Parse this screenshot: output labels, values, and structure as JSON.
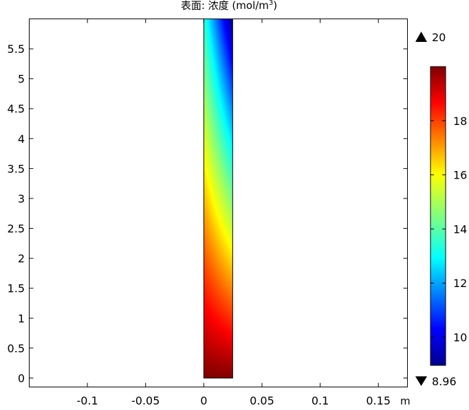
{
  "chart_data": {
    "type": "heatmap",
    "title_prefix": "表面: 浓度 (mol/m",
    "title_sup": "3",
    "title_suffix": ")",
    "x_unit": "m",
    "xlim": [
      -0.15,
      0.175
    ],
    "ylim": [
      -0.15,
      6.0
    ],
    "x_ticks": [
      -0.1,
      -0.05,
      0,
      0.05,
      0.1,
      0.15
    ],
    "x_tick_labels": [
      "-0.1",
      "-0.05",
      "0",
      "0.05",
      "0.1",
      "0.15"
    ],
    "y_ticks": [
      0,
      0.5,
      1,
      1.5,
      2,
      2.5,
      3,
      3.5,
      4,
      4.5,
      5,
      5.5
    ],
    "y_tick_labels": [
      "0",
      "0.5",
      "1",
      "1.5",
      "2",
      "2.5",
      "3",
      "3.5",
      "4",
      "4.5",
      "5",
      "5.5"
    ],
    "domain": {
      "x": [
        0,
        0.025
      ],
      "y": [
        0,
        6
      ]
    },
    "field": {
      "bottom": 20,
      "top_left": 13.5,
      "top_right": 9.0
    },
    "colorbar": {
      "min": 8.96,
      "max": 20,
      "max_label": "20",
      "min_label": "8.96",
      "ticks": [
        10,
        12,
        14,
        16,
        18
      ],
      "tick_labels": [
        "10",
        "12",
        "14",
        "16",
        "18"
      ],
      "colormap": "rainbow"
    }
  }
}
